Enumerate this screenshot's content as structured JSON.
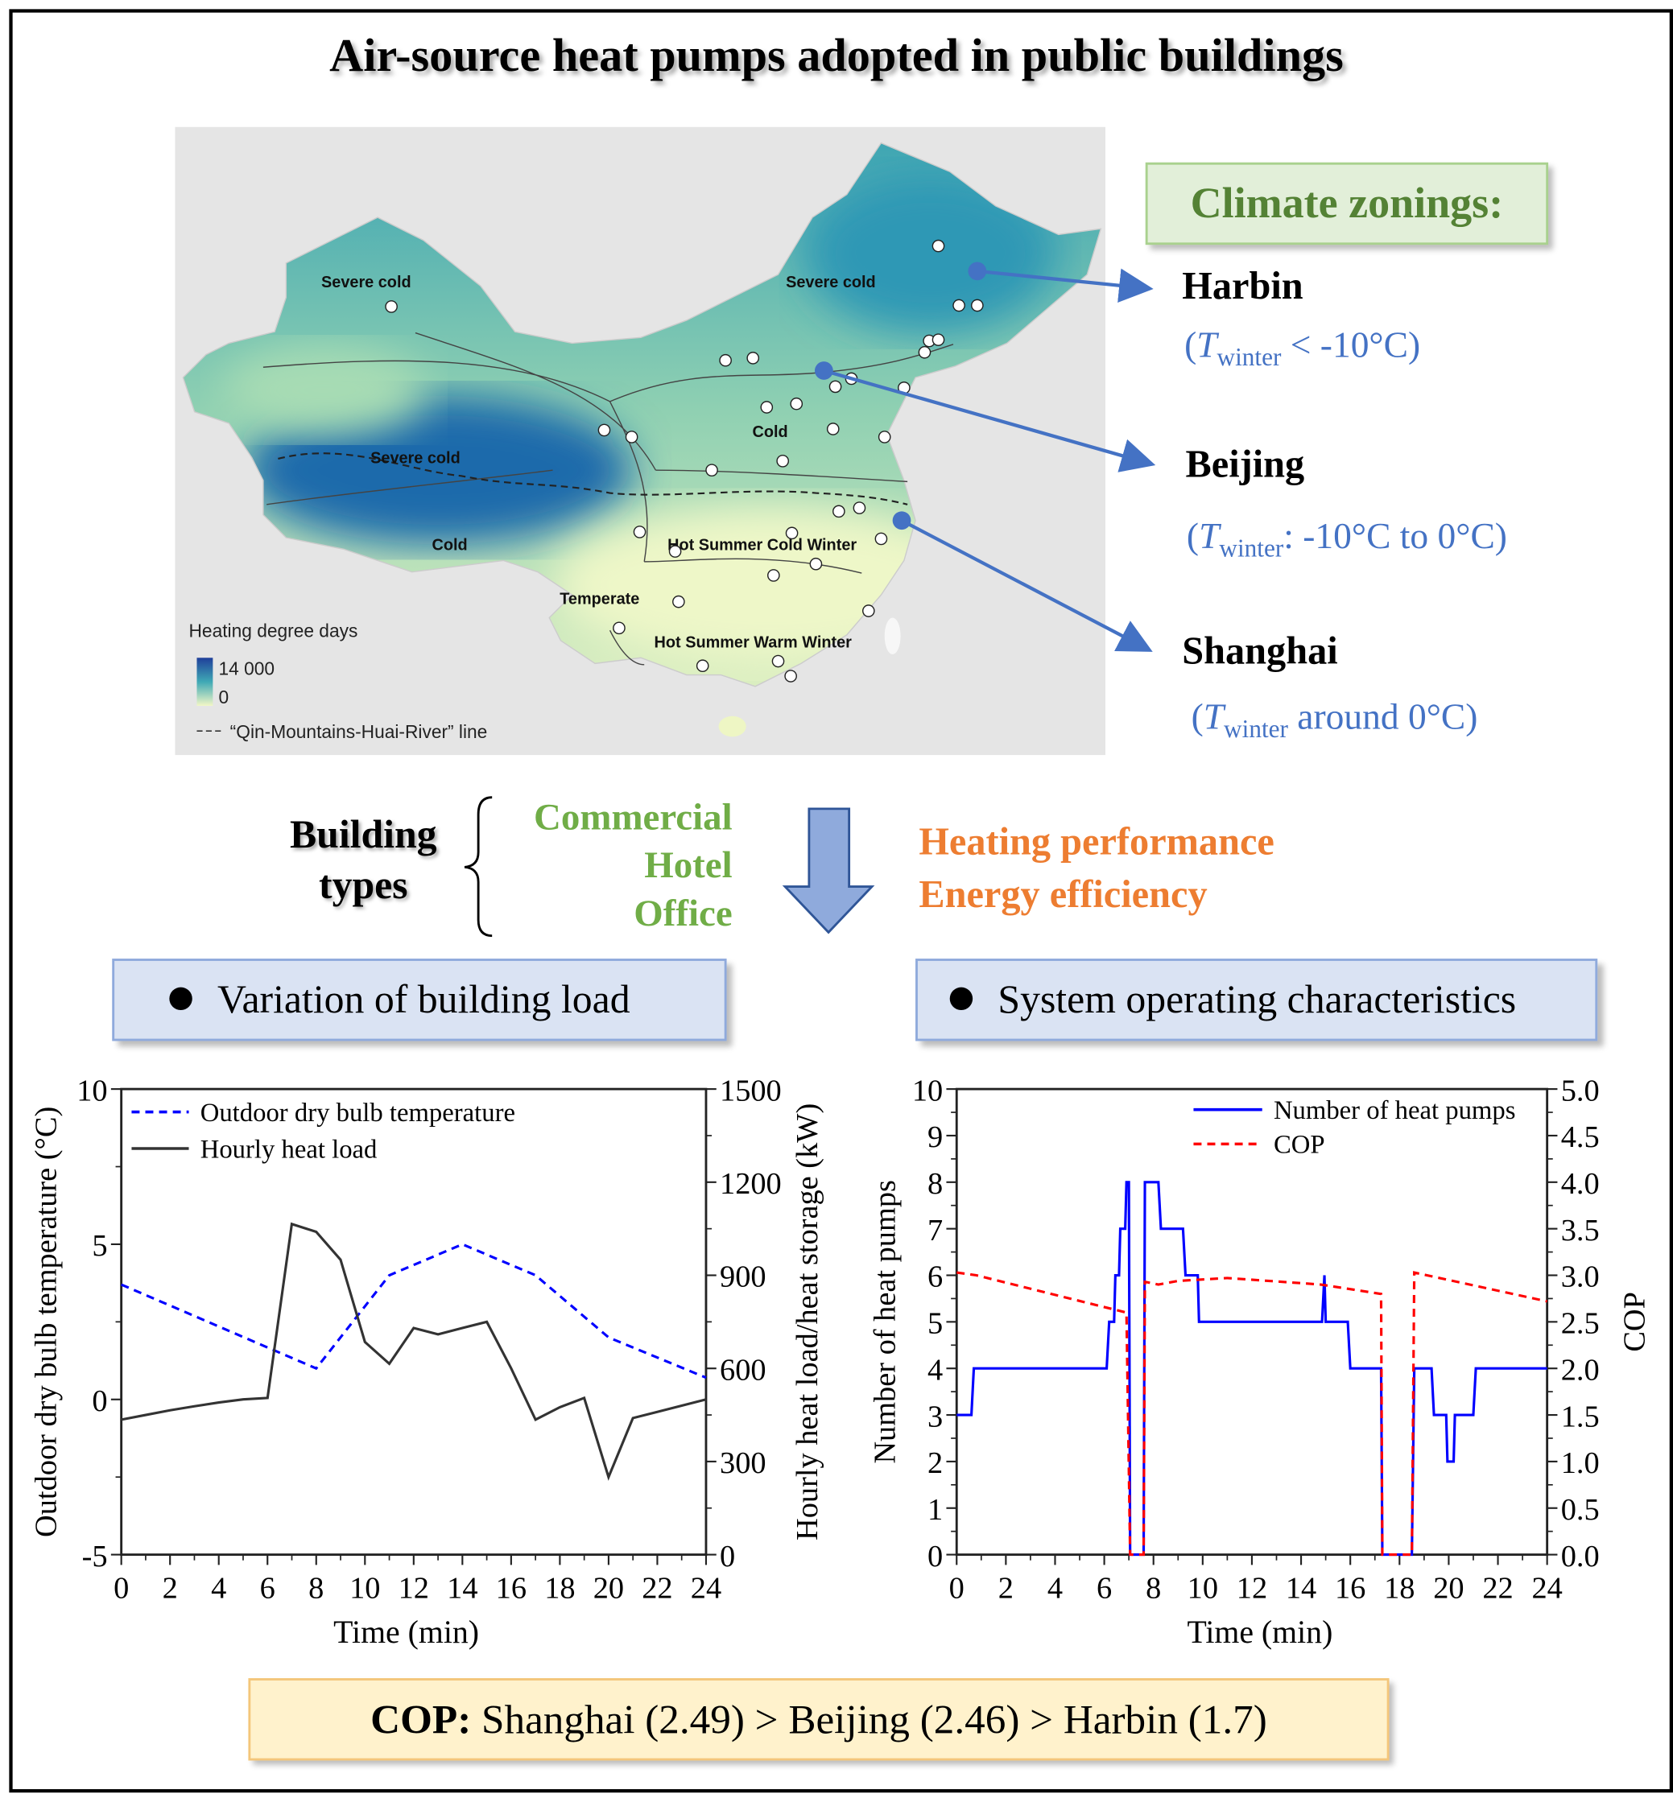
{
  "title": "Air-source heat pumps adopted in public buildings",
  "map": {
    "zone_labels": [
      "Severe cold",
      "Severe cold",
      "Severe cold",
      "Cold",
      "Cold",
      "Hot Summer Cold Winter",
      "Temperate",
      "Hot Summer Warm Winter"
    ],
    "legend_title": "Heating degree days",
    "legend_max": "14 000",
    "legend_min": "0",
    "legend_line": "“Qin-Mountains-Huai-River” line",
    "colors": {
      "high": "#1f5fa8",
      "mid": "#3fa9b5",
      "low": "#f2f7c6",
      "background": "#e5e5e5"
    }
  },
  "climate": {
    "heading": "Climate zonings:",
    "cities": [
      {
        "name": "Harbin",
        "open": "(",
        "t": "T",
        "sub": "winter",
        "rest": " < -10°C)"
      },
      {
        "name": "Beijing",
        "open": "(",
        "t": "T",
        "sub": "winter",
        "rest": ": -10°C to 0°C)"
      },
      {
        "name": "Shanghai",
        "open": "(",
        "t": "T",
        "sub": "winter",
        "rest": " around 0°C)"
      }
    ]
  },
  "building": {
    "label_line1": "Building",
    "label_line2": "types",
    "types": [
      "Commercial",
      "Hotel",
      "Office"
    ]
  },
  "outcomes": [
    "Heating performance",
    "Energy efficiency"
  ],
  "sections": [
    "Variation of building load",
    "System operating characteristics"
  ],
  "conclusion": {
    "label": "COP:",
    "text": " Shanghai (2.49) > Beijing (2.46) > Harbin (1.7)"
  },
  "chart_data": [
    {
      "type": "line",
      "xlabel": "Time (min)",
      "ylabel": "Outdoor dry bulb temperature (°C)",
      "y2label": "Hourly heat load/heat storage (kW)",
      "xlim": [
        0,
        24
      ],
      "ylim": [
        -5,
        10
      ],
      "y2lim": [
        0,
        1500
      ],
      "x_ticks": [
        "0",
        "2",
        "4",
        "6",
        "8",
        "10",
        "12",
        "14",
        "16",
        "18",
        "20",
        "22",
        "24"
      ],
      "y_ticks": [
        "-5",
        "0",
        "5",
        "10"
      ],
      "y2_ticks": [
        "0",
        "300",
        "600",
        "900",
        "1200",
        "1500"
      ],
      "legend": "top-left",
      "series": [
        {
          "name": "Outdoor dry bulb temperature",
          "axis": "left",
          "color": "#0000ff",
          "dash": true,
          "x": [
            0,
            8,
            11,
            14,
            17,
            20,
            24
          ],
          "y": [
            3.7,
            1.0,
            4.0,
            5.0,
            4.0,
            2.0,
            0.7
          ]
        },
        {
          "name": "Hourly heat load",
          "axis": "right",
          "color": "#333333",
          "dash": false,
          "x": [
            0,
            1,
            2,
            3,
            4,
            5,
            6,
            7,
            8,
            9,
            10,
            11,
            12,
            13,
            14,
            15,
            16,
            17,
            18,
            19,
            20,
            21,
            22,
            23,
            24
          ],
          "y": [
            435,
            450,
            465,
            478,
            490,
            500,
            505,
            1065,
            1040,
            950,
            685,
            615,
            730,
            710,
            730,
            750,
            600,
            435,
            475,
            505,
            250,
            440,
            460,
            480,
            500
          ]
        }
      ]
    },
    {
      "type": "line",
      "xlabel": "Time (min)",
      "ylabel": "Number of heat pumps",
      "y2label": "COP",
      "xlim": [
        0,
        24
      ],
      "ylim": [
        0,
        10
      ],
      "y2lim": [
        0,
        5
      ],
      "x_ticks": [
        "0",
        "2",
        "4",
        "6",
        "8",
        "10",
        "12",
        "14",
        "16",
        "18",
        "20",
        "22",
        "24"
      ],
      "y_ticks": [
        "0",
        "1",
        "2",
        "3",
        "4",
        "5",
        "6",
        "7",
        "8",
        "9",
        "10"
      ],
      "y2_ticks": [
        "0.0",
        "0.5",
        "1.0",
        "1.5",
        "2.0",
        "2.5",
        "3.0",
        "3.5",
        "4.0",
        "4.5",
        "5.0"
      ],
      "legend": "top-right",
      "series": [
        {
          "name": "Number of heat pumps",
          "axis": "left",
          "color": "#0000ff",
          "dash": false,
          "x": [
            0,
            0.6,
            0.7,
            6.1,
            6.2,
            6.4,
            6.45,
            6.6,
            6.65,
            6.85,
            6.9,
            7.0,
            7.05,
            7.6,
            7.65,
            8.2,
            8.3,
            9.2,
            9.3,
            9.8,
            9.85,
            14.85,
            14.95,
            15.0,
            15.9,
            16.0,
            17.25,
            17.3,
            18.5,
            18.6,
            19.3,
            19.4,
            19.9,
            19.95,
            20.2,
            20.25,
            21.0,
            21.1,
            24
          ],
          "y": [
            3,
            3,
            4,
            4,
            5,
            5,
            6,
            6,
            7,
            7,
            8,
            8,
            0,
            0,
            8,
            8,
            7,
            7,
            6,
            6,
            5,
            5,
            6,
            5,
            5,
            4,
            4,
            0,
            0,
            4,
            4,
            3,
            3,
            2,
            2,
            3,
            3,
            4,
            4
          ]
        },
        {
          "name": "COP",
          "axis": "right",
          "color": "#ff0000",
          "dash": true,
          "x": [
            0,
            0.8,
            6.9,
            7.05,
            7.6,
            7.65,
            8.2,
            9,
            11,
            14.8,
            17.25,
            17.3,
            18.5,
            18.6,
            24
          ],
          "y": [
            3.03,
            3.0,
            2.6,
            0,
            0,
            2.93,
            2.9,
            2.94,
            2.97,
            2.9,
            2.8,
            0,
            0,
            3.03,
            2.72
          ]
        }
      ]
    }
  ]
}
